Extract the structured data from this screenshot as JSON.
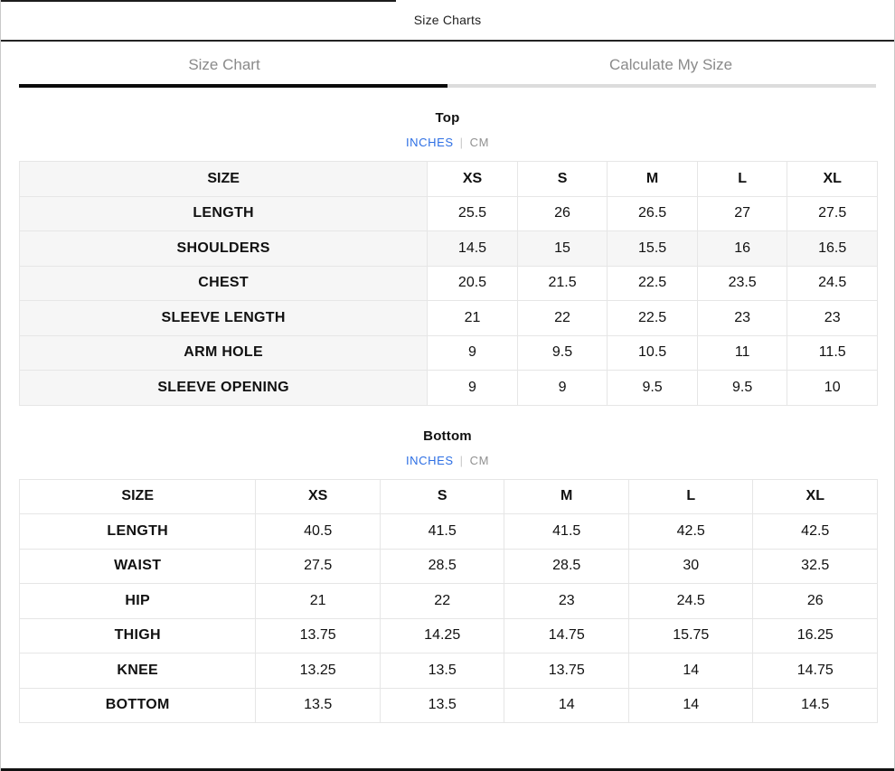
{
  "modal": {
    "title": "Size Charts",
    "close_icon": "✕"
  },
  "tabs": [
    {
      "label": "Size Chart",
      "active": true
    },
    {
      "label": "Calculate My Size",
      "active": false
    }
  ],
  "unit_toggle": {
    "inches": "INCHES",
    "divider": "|",
    "cm": "CM"
  },
  "colors": {
    "accent_blue": "#2d6fe4",
    "muted_gray": "#8a8a8a",
    "row_highlight": "#f6f6f6",
    "active_tab_underline": "#0b0b0b"
  },
  "top_chart": {
    "heading": "Top",
    "columns": [
      "SIZE",
      "XS",
      "S",
      "M",
      "L",
      "XL"
    ],
    "rows": [
      {
        "label": "LENGTH",
        "values": [
          "25.5",
          "26",
          "26.5",
          "27",
          "27.5"
        ],
        "highlight": false
      },
      {
        "label": "SHOULDERS",
        "values": [
          "14.5",
          "15",
          "15.5",
          "16",
          "16.5"
        ],
        "highlight": true
      },
      {
        "label": "CHEST",
        "values": [
          "20.5",
          "21.5",
          "22.5",
          "23.5",
          "24.5"
        ],
        "highlight": false
      },
      {
        "label": "SLEEVE LENGTH",
        "values": [
          "21",
          "22",
          "22.5",
          "23",
          "23"
        ],
        "highlight": false
      },
      {
        "label": "ARM HOLE",
        "values": [
          "9",
          "9.5",
          "10.5",
          "11",
          "11.5"
        ],
        "highlight": false
      },
      {
        "label": "SLEEVE OPENING",
        "values": [
          "9",
          "9",
          "9.5",
          "9.5",
          "10"
        ],
        "highlight": false
      }
    ]
  },
  "bottom_chart": {
    "heading": "Bottom",
    "columns": [
      "SIZE",
      "XS",
      "S",
      "M",
      "L",
      "XL"
    ],
    "rows": [
      {
        "label": "LENGTH",
        "values": [
          "40.5",
          "41.5",
          "41.5",
          "42.5",
          "42.5"
        ],
        "highlight": false
      },
      {
        "label": "WAIST",
        "values": [
          "27.5",
          "28.5",
          "28.5",
          "30",
          "32.5"
        ],
        "highlight": false
      },
      {
        "label": "HIP",
        "values": [
          "21",
          "22",
          "23",
          "24.5",
          "26"
        ],
        "highlight": false
      },
      {
        "label": "THIGH",
        "values": [
          "13.75",
          "14.25",
          "14.75",
          "15.75",
          "16.25"
        ],
        "highlight": false
      },
      {
        "label": "KNEE",
        "values": [
          "13.25",
          "13.5",
          "13.75",
          "14",
          "14.75"
        ],
        "highlight": false
      },
      {
        "label": "BOTTOM",
        "values": [
          "13.5",
          "13.5",
          "14",
          "14",
          "14.5"
        ],
        "highlight": false
      }
    ]
  }
}
